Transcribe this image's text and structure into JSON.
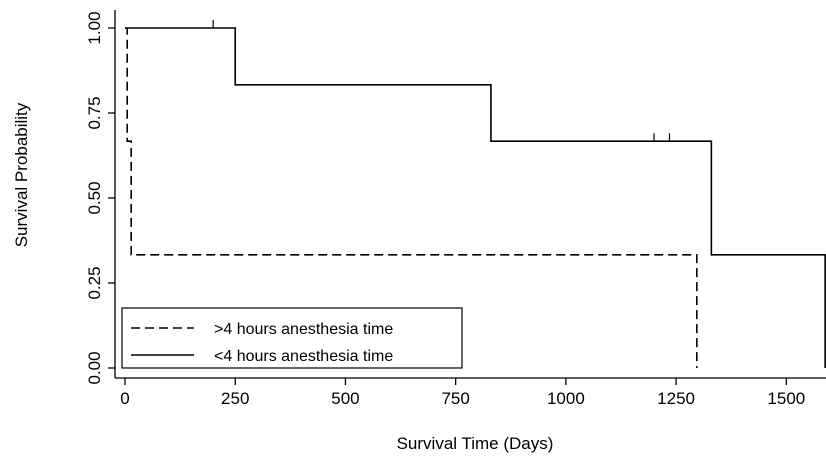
{
  "chart_data": {
    "type": "line",
    "title": "",
    "xlabel": "Survival Time (Days)",
    "ylabel": "Survival Probability",
    "xlim": [
      0,
      1590
    ],
    "ylim": [
      0,
      1.0
    ],
    "xticks": [
      0,
      250,
      500,
      750,
      1000,
      1250,
      1500
    ],
    "yticks": [
      0.0,
      0.25,
      0.5,
      0.75,
      1.0
    ],
    "xtick_labels": [
      "0",
      "250",
      "500",
      "750",
      "1000",
      "1250",
      "1500"
    ],
    "ytick_labels": [
      "0.00",
      "0.25",
      "0.50",
      "0.75",
      "1.00"
    ],
    "grid": false,
    "legend_position": "bottom-left",
    "series": [
      {
        "name": ">4 hours anesthesia time",
        "style": "dashed",
        "color": "#000000",
        "steps": [
          [
            0,
            1.0
          ],
          [
            5,
            0.667
          ],
          [
            14,
            0.333
          ],
          [
            1297,
            0.0
          ]
        ],
        "censored": []
      },
      {
        "name": "<4 hours anesthesia time",
        "style": "solid",
        "color": "#000000",
        "steps": [
          [
            0,
            1.0
          ],
          [
            250,
            0.833
          ],
          [
            830,
            0.667
          ],
          [
            1330,
            0.333
          ],
          [
            1588,
            0.0
          ]
        ],
        "censored": [
          [
            200,
            1.0
          ],
          [
            1200,
            0.667
          ],
          [
            1235,
            0.667
          ]
        ]
      }
    ]
  }
}
